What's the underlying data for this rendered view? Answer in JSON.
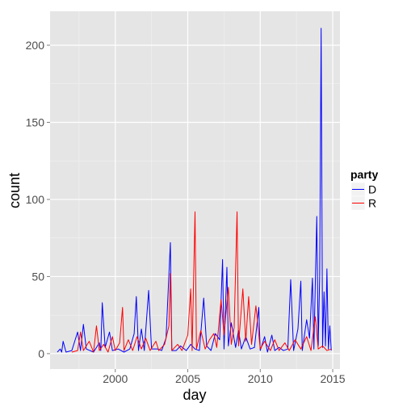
{
  "chart_data": {
    "type": "line",
    "xlabel": "day",
    "ylabel": "count",
    "xlim": [
      1995.5,
      2015.5
    ],
    "ylim": [
      -10,
      222
    ],
    "x_ticks": [
      2000,
      2005,
      2010,
      2015
    ],
    "x_tick_labels": [
      "2000",
      "2005",
      "2010",
      "2015"
    ],
    "y_ticks": [
      0,
      50,
      100,
      150,
      200
    ],
    "y_tick_labels": [
      "0",
      "50",
      "100",
      "150",
      "200"
    ],
    "grid": true,
    "legend": {
      "title": "party",
      "placement": "right"
    },
    "series": [
      {
        "name": "D",
        "color": "#0000ff",
        "points": [
          [
            1996.0,
            1
          ],
          [
            1996.2,
            3
          ],
          [
            1996.3,
            1
          ],
          [
            1996.4,
            8
          ],
          [
            1996.6,
            1
          ],
          [
            1997.0,
            2
          ],
          [
            1997.4,
            14
          ],
          [
            1997.6,
            2
          ],
          [
            1997.8,
            19
          ],
          [
            1998.0,
            3
          ],
          [
            1998.5,
            1
          ],
          [
            1998.9,
            7
          ],
          [
            1999.0,
            2
          ],
          [
            1999.1,
            33
          ],
          [
            1999.3,
            4
          ],
          [
            1999.6,
            14
          ],
          [
            1999.8,
            2
          ],
          [
            2000.2,
            3
          ],
          [
            2000.6,
            1
          ],
          [
            2001.0,
            3
          ],
          [
            2001.3,
            13
          ],
          [
            2001.45,
            37
          ],
          [
            2001.6,
            2
          ],
          [
            2001.8,
            16
          ],
          [
            2002.0,
            2
          ],
          [
            2002.3,
            41
          ],
          [
            2002.5,
            3
          ],
          [
            2002.9,
            3
          ],
          [
            2003.2,
            2
          ],
          [
            2003.5,
            10
          ],
          [
            2003.8,
            72
          ],
          [
            2003.9,
            2
          ],
          [
            2004.2,
            2
          ],
          [
            2004.5,
            5
          ],
          [
            2004.9,
            2
          ],
          [
            2005.2,
            6
          ],
          [
            2005.5,
            3
          ],
          [
            2005.8,
            2
          ],
          [
            2006.1,
            36
          ],
          [
            2006.3,
            5
          ],
          [
            2006.6,
            2
          ],
          [
            2006.9,
            13
          ],
          [
            2007.2,
            9
          ],
          [
            2007.4,
            61
          ],
          [
            2007.5,
            3
          ],
          [
            2007.7,
            56
          ],
          [
            2007.8,
            5
          ],
          [
            2008.0,
            20
          ],
          [
            2008.3,
            4
          ],
          [
            2008.5,
            15
          ],
          [
            2008.7,
            3
          ],
          [
            2009.0,
            11
          ],
          [
            2009.3,
            3
          ],
          [
            2009.6,
            4
          ],
          [
            2009.9,
            30
          ],
          [
            2010.0,
            2
          ],
          [
            2010.3,
            11
          ],
          [
            2010.5,
            1
          ],
          [
            2010.8,
            12
          ],
          [
            2011.0,
            2
          ],
          [
            2011.3,
            4
          ],
          [
            2011.6,
            2
          ],
          [
            2011.9,
            3
          ],
          [
            2012.1,
            48
          ],
          [
            2012.3,
            2
          ],
          [
            2012.6,
            16
          ],
          [
            2012.8,
            47
          ],
          [
            2012.9,
            2
          ],
          [
            2013.2,
            22
          ],
          [
            2013.4,
            10
          ],
          [
            2013.6,
            49
          ],
          [
            2013.7,
            3
          ],
          [
            2013.9,
            89
          ],
          [
            2014.0,
            5
          ],
          [
            2014.1,
            50
          ],
          [
            2014.2,
            211
          ],
          [
            2014.3,
            4
          ],
          [
            2014.4,
            40
          ],
          [
            2014.5,
            5
          ],
          [
            2014.6,
            55
          ],
          [
            2014.7,
            3
          ],
          [
            2014.8,
            18
          ],
          [
            2014.9,
            2
          ]
        ]
      },
      {
        "name": "R",
        "color": "#ff0000",
        "points": [
          [
            1997.0,
            1
          ],
          [
            1997.4,
            2
          ],
          [
            1997.6,
            14
          ],
          [
            1997.8,
            2
          ],
          [
            1998.2,
            8
          ],
          [
            1998.5,
            1
          ],
          [
            1998.7,
            18
          ],
          [
            1998.9,
            2
          ],
          [
            1999.2,
            6
          ],
          [
            1999.5,
            1
          ],
          [
            1999.8,
            11
          ],
          [
            2000.0,
            2
          ],
          [
            2000.3,
            7
          ],
          [
            2000.5,
            30
          ],
          [
            2000.6,
            2
          ],
          [
            2000.9,
            9
          ],
          [
            2001.2,
            2
          ],
          [
            2001.5,
            11
          ],
          [
            2001.8,
            3
          ],
          [
            2002.1,
            10
          ],
          [
            2002.4,
            2
          ],
          [
            2002.8,
            8
          ],
          [
            2003.0,
            2
          ],
          [
            2003.4,
            6
          ],
          [
            2003.7,
            18
          ],
          [
            2003.8,
            52
          ],
          [
            2003.9,
            2
          ],
          [
            2004.3,
            6
          ],
          [
            2004.6,
            2
          ],
          [
            2005.0,
            12
          ],
          [
            2005.2,
            42
          ],
          [
            2005.3,
            2
          ],
          [
            2005.5,
            92
          ],
          [
            2005.6,
            3
          ],
          [
            2005.9,
            15
          ],
          [
            2006.2,
            3
          ],
          [
            2006.5,
            9
          ],
          [
            2006.8,
            13
          ],
          [
            2007.0,
            4
          ],
          [
            2007.3,
            35
          ],
          [
            2007.5,
            12
          ],
          [
            2007.8,
            43
          ],
          [
            2008.0,
            6
          ],
          [
            2008.2,
            17
          ],
          [
            2008.4,
            92
          ],
          [
            2008.5,
            5
          ],
          [
            2008.8,
            42
          ],
          [
            2009.0,
            8
          ],
          [
            2009.2,
            37
          ],
          [
            2009.4,
            6
          ],
          [
            2009.7,
            31
          ],
          [
            2010.0,
            3
          ],
          [
            2010.3,
            8
          ],
          [
            2010.7,
            2
          ],
          [
            2011.0,
            9
          ],
          [
            2011.3,
            2
          ],
          [
            2011.7,
            7
          ],
          [
            2012.0,
            2
          ],
          [
            2012.4,
            9
          ],
          [
            2012.8,
            3
          ],
          [
            2013.2,
            11
          ],
          [
            2013.5,
            2
          ],
          [
            2013.8,
            24
          ],
          [
            2014.0,
            3
          ],
          [
            2014.3,
            5
          ],
          [
            2014.6,
            2
          ],
          [
            2014.9,
            3
          ]
        ]
      }
    ]
  }
}
